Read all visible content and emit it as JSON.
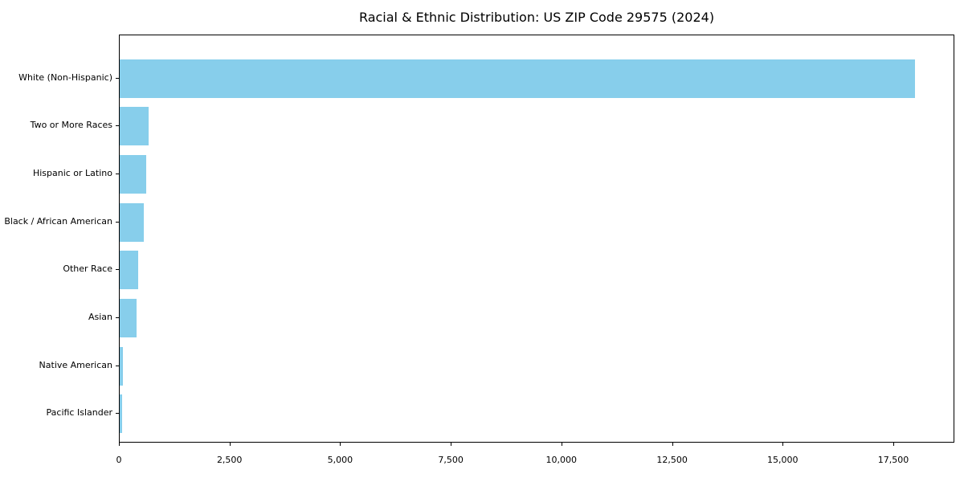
{
  "chart_data": {
    "type": "bar",
    "orientation": "horizontal",
    "title": "Racial & Ethnic Distribution: US ZIP Code 29575 (2024)",
    "categories": [
      "White (Non-Hispanic)",
      "Two or More Races",
      "Hispanic or Latino",
      "Black / African American",
      "Other Race",
      "Asian",
      "Native American",
      "Pacific Islander"
    ],
    "values": [
      17980,
      650,
      605,
      550,
      410,
      375,
      70,
      60
    ],
    "xlabel": "",
    "ylabel": "",
    "xlim": [
      0,
      18880
    ],
    "xticks": [
      {
        "value": 0,
        "label": "0"
      },
      {
        "value": 2500,
        "label": "2,500"
      },
      {
        "value": 5000,
        "label": "5,000"
      },
      {
        "value": 7500,
        "label": "7,500"
      },
      {
        "value": 10000,
        "label": "10,000"
      },
      {
        "value": 12500,
        "label": "12,500"
      },
      {
        "value": 15000,
        "label": "15,000"
      },
      {
        "value": 17500,
        "label": "17,500"
      }
    ],
    "grid": false,
    "legend": null,
    "bar_color": "#87CEEB",
    "background_color": "#ffffff",
    "spine_color": "#000000",
    "text_color": "#000000"
  }
}
